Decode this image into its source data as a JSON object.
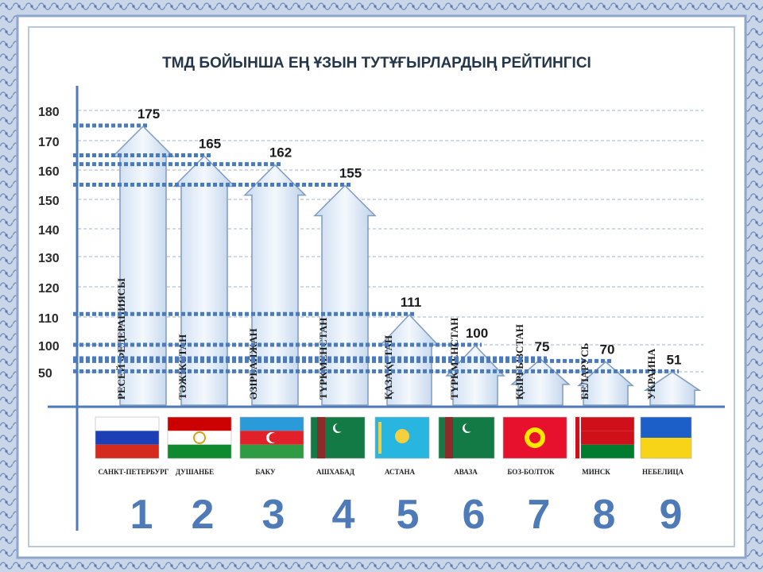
{
  "chart_data": {
    "type": "bar",
    "title": "ТМД БОЙЫНША ЕҢ ҰЗЫН ТУТҰҒЫРЛАРДЫҢ РЕЙТИНГІСІ",
    "y_ticks": [
      "180",
      "170",
      "160",
      "150",
      "140",
      "130",
      "120",
      "110",
      "100",
      "50"
    ],
    "categories": [
      {
        "rank": "1",
        "country": "РЕСЕЙ ФЕДЕРАЦИЯСЫ",
        "city": "САНКТ-ПЕТЕРБУРГ",
        "value": 175,
        "label": "175"
      },
      {
        "rank": "2",
        "country": "ТӘЖІКСТАН",
        "city": "ДУШАНБЕ",
        "value": 165,
        "label": "165"
      },
      {
        "rank": "3",
        "country": "ӘЗІРБАЙЖАН",
        "city": "БАКУ",
        "value": 162,
        "label": "162"
      },
      {
        "rank": "4",
        "country": "ТҮРКМЕНСТАН",
        "city": "АШХАБАД",
        "value": 155,
        "label": "155"
      },
      {
        "rank": "5",
        "country": "ҚАЗАҚСТАН",
        "city": "АСТАНА",
        "value": 111,
        "label": "111"
      },
      {
        "rank": "6",
        "country": "ТҮРКМЕНСТАН",
        "city": "АВАЗА",
        "value": 100,
        "label": "100"
      },
      {
        "rank": "7",
        "country": "ҚЫРҒЫЗСТАН",
        "city": "БОЗ-БОЛТОК",
        "value": 75,
        "label": "75"
      },
      {
        "rank": "8",
        "country": "БЕЛАРУСЬ",
        "city": "МИНСК",
        "value": 70,
        "label": "70"
      },
      {
        "rank": "9",
        "country": "УКРАИНА",
        "city": "НЕБЕЛИЦА",
        "value": 51,
        "label": "51"
      }
    ],
    "grid": true,
    "colors": {
      "arrow_fill": "#dbe8f6",
      "arrow_stroke": "#7f9bbd",
      "dots": "#4f7ab8",
      "axis": "#4f7ab8",
      "rank": "#4f7ab8",
      "title": "#24364a",
      "border": "#9fb4d3"
    }
  }
}
